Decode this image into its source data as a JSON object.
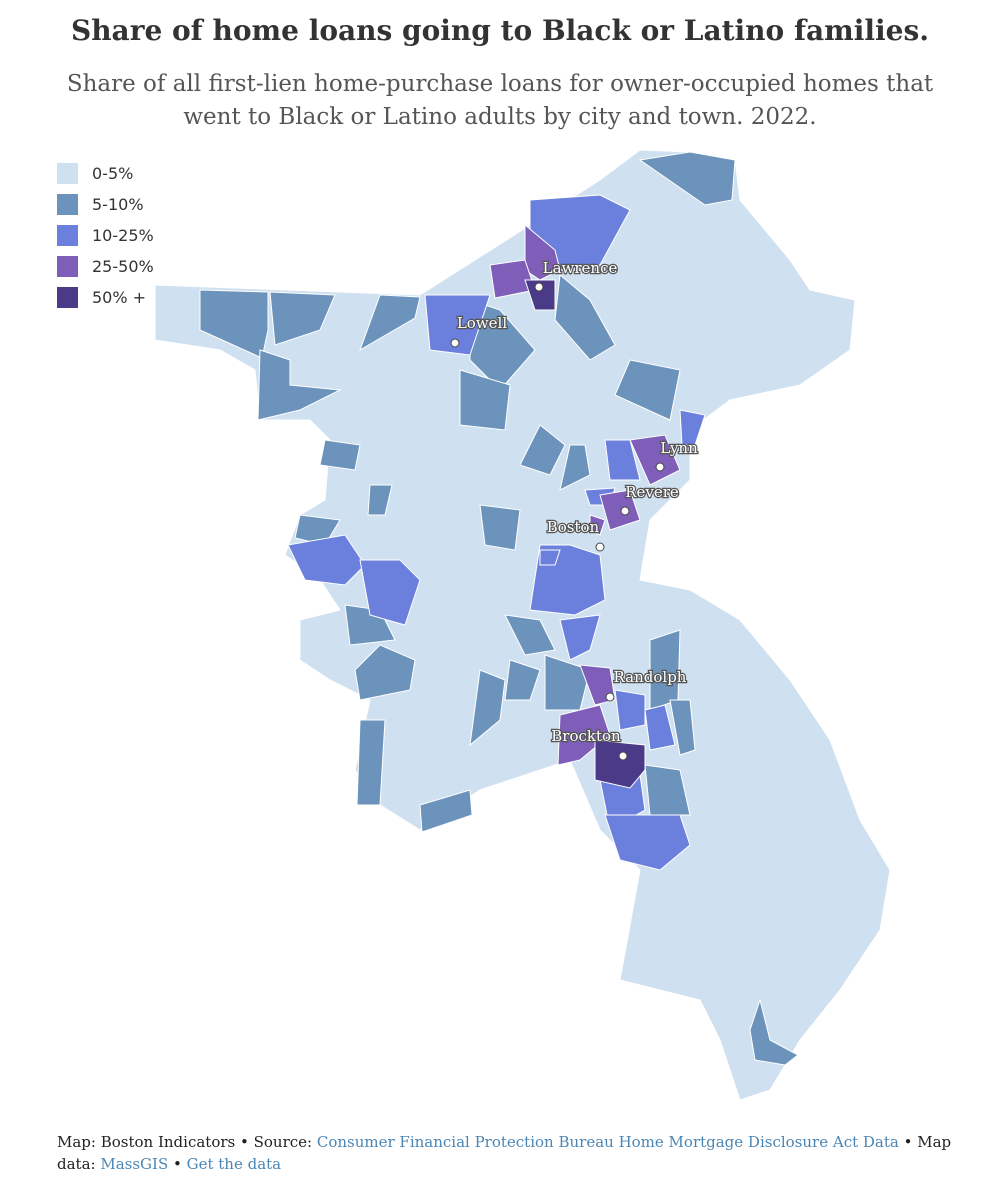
{
  "title": "Share of home loans going to Black or Latino families.",
  "subtitle": "Share of all first-lien home-purchase loans for owner-occupied homes that went to Black or Latino adults by city and town. 2022.",
  "legend": [
    {
      "label": "0-5%",
      "color": "#cfe0f0"
    },
    {
      "label": "5-10%",
      "color": "#6b93bb"
    },
    {
      "label": "10-25%",
      "color": "#6b80dc"
    },
    {
      "label": "25-50%",
      "color": "#7e5eb8"
    },
    {
      "label": "50% +",
      "color": "#4b3a87"
    }
  ],
  "cities": [
    {
      "name": "Lawrence",
      "category": "50% +"
    },
    {
      "name": "Lowell",
      "category": "10-25%"
    },
    {
      "name": "Lynn",
      "category": "25-50%"
    },
    {
      "name": "Revere",
      "category": "25-50%"
    },
    {
      "name": "Boston",
      "category": "10-25%"
    },
    {
      "name": "Randolph",
      "category": "25-50%"
    },
    {
      "name": "Brockton",
      "category": "50% +"
    }
  ],
  "footer": {
    "credit": "Map: Boston Indicators • Source: ",
    "source_link": "Consumer Financial Protection Bureau Home Mortgage Disclosure Act Data",
    "mapdata": " • Map data: ",
    "mapdata_link": "MassGIS",
    "sep": " • ",
    "get_data_link": "Get the data"
  }
}
